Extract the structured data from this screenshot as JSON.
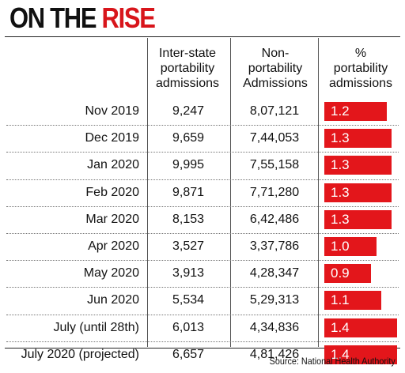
{
  "title": {
    "part1": "ON THE",
    "part2": "RISE"
  },
  "chart_data": {
    "type": "table",
    "columns": [
      {
        "lines": [
          "Inter-state",
          "portability",
          "admissions"
        ]
      },
      {
        "lines": [
          "Non-",
          "portability",
          "Admissions"
        ]
      },
      {
        "lines": [
          "%",
          "portability",
          "admissions"
        ]
      }
    ],
    "rows": [
      {
        "month": "Nov 2019",
        "interstate": "9,247",
        "non_portability": "8,07,121",
        "pct": "1.2"
      },
      {
        "month": "Dec 2019",
        "interstate": "9,659",
        "non_portability": "7,44,053",
        "pct": "1.3"
      },
      {
        "month": "Jan 2020",
        "interstate": "9,995",
        "non_portability": "7,55,158",
        "pct": "1.3"
      },
      {
        "month": "Feb 2020",
        "interstate": "9,871",
        "non_portability": "7,71,280",
        "pct": "1.3"
      },
      {
        "month": "Mar 2020",
        "interstate": "8,153",
        "non_portability": "6,42,486",
        "pct": "1.3"
      },
      {
        "month": "Apr 2020",
        "interstate": "3,527",
        "non_portability": "3,37,786",
        "pct": "1.0"
      },
      {
        "month": "May 2020",
        "interstate": "3,913",
        "non_portability": "4,28,347",
        "pct": "0.9"
      },
      {
        "month": "Jun 2020",
        "interstate": "5,534",
        "non_portability": "5,29,313",
        "pct": "1.1"
      },
      {
        "month": "July (until 28th)",
        "interstate": "6,013",
        "non_portability": "4,34,836",
        "pct": "1.4"
      },
      {
        "month": "July 2020 (projected)",
        "interstate": "6,657",
        "non_portability": "4,81,426",
        "pct": "1.4"
      }
    ],
    "bar_color": "#e3161b",
    "source": "Source: National Health Authority"
  }
}
